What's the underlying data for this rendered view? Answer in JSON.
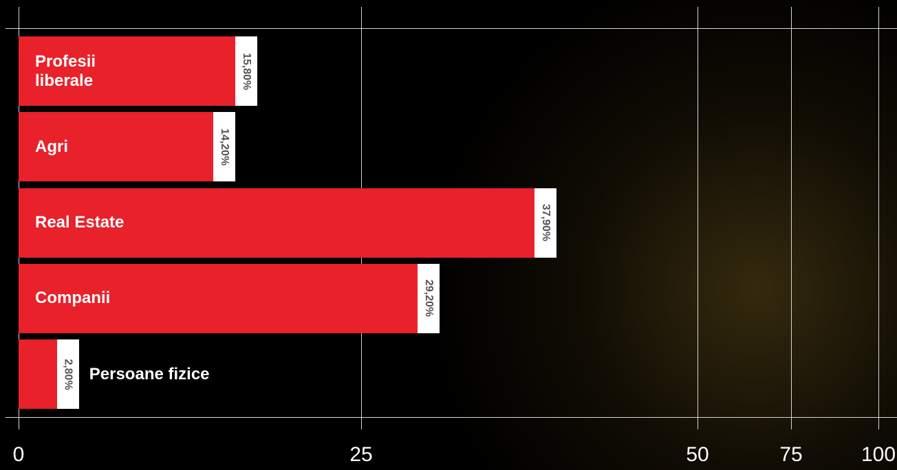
{
  "chart_data": {
    "type": "bar",
    "orientation": "horizontal",
    "categories": [
      "Profesii liberale",
      "Agri",
      "Real Estate",
      "Companii",
      "Persoane fizice"
    ],
    "values": [
      15.8,
      14.2,
      37.9,
      29.2,
      2.8
    ],
    "value_labels": [
      "15,80%",
      "14,20%",
      "37,90%",
      "29,20%",
      "2,80%"
    ],
    "color": "#e8212b",
    "xlim": [
      0,
      100
    ],
    "xticks": [
      0,
      25,
      50,
      75,
      100
    ],
    "grid": true
  }
}
